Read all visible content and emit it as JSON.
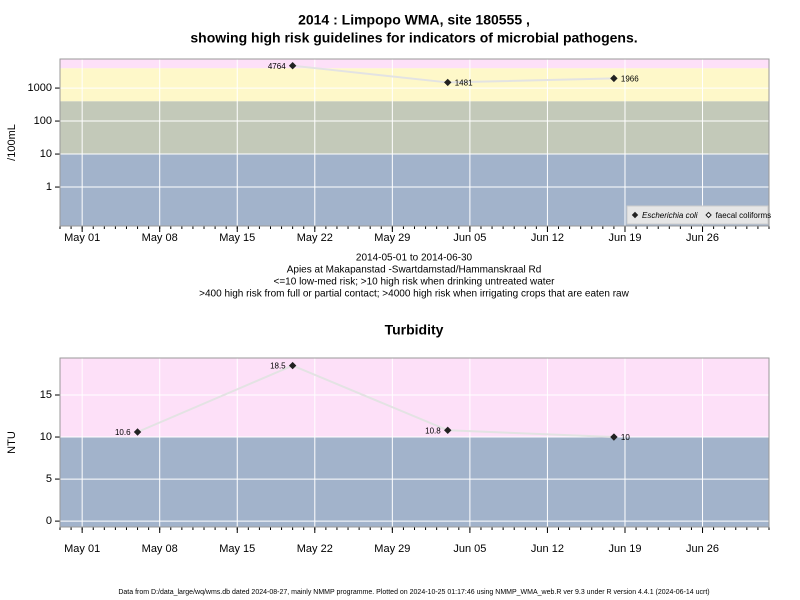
{
  "chart_data": [
    {
      "type": "line",
      "title": [
        "2014 : Limpopo WMA, site 180555 ,",
        "showing high risk guidelines for indicators of microbial pathogens."
      ],
      "annotations": [
        "2014-05-01 to 2014-06-30",
        "Apies at Makapanstad -Swartdamstad/Hammanskraal Rd",
        "<=10 low-med risk; >10 high risk when drinking untreated water",
        ">400 high risk from full or partial contact; >4000 high risk when irrigating crops that are eaten raw"
      ],
      "y_label": "/100mL",
      "log_y": true,
      "x": [
        "2014-05-20",
        "2014-06-03",
        "2014-06-18"
      ],
      "series": [
        {
          "name": "Escherichia coli",
          "marker": "diamond",
          "color": "#222222",
          "values": [
            4764,
            1481,
            1966
          ]
        },
        {
          "name": "faecal coliforms",
          "marker": "open-diamond",
          "color": "#222222",
          "values": [
            null,
            null,
            null
          ]
        }
      ],
      "line_color": "#e3e3e3",
      "xlim": [
        "2014-04-29",
        "2014-07-02"
      ],
      "xticks": [
        {
          "value": "2014-05-01",
          "label": "May 01"
        },
        {
          "value": "2014-05-08",
          "label": "May 08"
        },
        {
          "value": "2014-05-15",
          "label": "May 15"
        },
        {
          "value": "2014-05-22",
          "label": "May 22"
        },
        {
          "value": "2014-05-29",
          "label": "May 29"
        },
        {
          "value": "2014-06-05",
          "label": "Jun 05"
        },
        {
          "value": "2014-06-12",
          "label": "Jun 12"
        },
        {
          "value": "2014-06-19",
          "label": "Jun 19"
        },
        {
          "value": "2014-06-26",
          "label": "Jun 26"
        }
      ],
      "ylim": [
        0.066,
        7600
      ],
      "yticks": [
        1,
        10,
        100,
        1000
      ],
      "bands": {
        "breaks": [
          10,
          400,
          4000
        ],
        "colors": [
          "#a2b3cb",
          "#c3c9b9",
          "#fef8c9",
          "#fde0f8"
        ]
      },
      "grid": true,
      "legend": "bottom-right"
    },
    {
      "type": "line",
      "title": [
        "Turbidity"
      ],
      "y_label": "NTU",
      "log_y": false,
      "x": [
        "2014-05-06",
        "2014-05-20",
        "2014-06-03",
        "2014-06-18"
      ],
      "series": [
        {
          "name": "Turbidity",
          "marker": "diamond",
          "color": "#222222",
          "values": [
            10.6,
            18.5,
            10.8,
            10
          ]
        }
      ],
      "line_color": "#e3e3e3",
      "xlim": [
        "2014-04-29",
        "2014-07-02"
      ],
      "xticks": [
        {
          "value": "2014-05-01",
          "label": "May 01"
        },
        {
          "value": "2014-05-08",
          "label": "May 08"
        },
        {
          "value": "2014-05-15",
          "label": "May 15"
        },
        {
          "value": "2014-05-22",
          "label": "May 22"
        },
        {
          "value": "2014-05-29",
          "label": "May 29"
        },
        {
          "value": "2014-06-05",
          "label": "Jun 05"
        },
        {
          "value": "2014-06-12",
          "label": "Jun 12"
        },
        {
          "value": "2014-06-19",
          "label": "Jun 19"
        },
        {
          "value": "2014-06-26",
          "label": "Jun 26"
        }
      ],
      "ylim": [
        -0.7,
        19.4
      ],
      "yticks": [
        0,
        5,
        10,
        15
      ],
      "bands": {
        "breaks": [
          10
        ],
        "colors": [
          "#a2b3cb",
          "#fde0f8"
        ]
      },
      "grid": true
    }
  ],
  "footer": "Data from D:/data_large/wq/wms.db dated 2024-08-27, mainly NMMP programme. Plotted on 2024-10-25 01:17:46 using NMMP_WMA_web.R ver 9.3 under R version 4.4.1 (2024-06-14 ucrt)"
}
